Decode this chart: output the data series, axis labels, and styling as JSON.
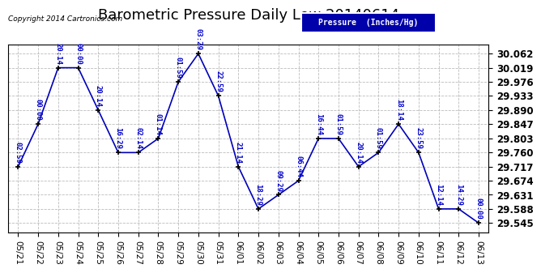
{
  "title": "Barometric Pressure Daily Low 20140614",
  "copyright": "Copyright 2014 Cartronics.com",
  "legend_label": "Pressure  (Inches/Hg)",
  "x_labels": [
    "05/21",
    "05/22",
    "05/23",
    "05/24",
    "05/25",
    "05/26",
    "05/27",
    "05/28",
    "05/29",
    "05/30",
    "05/31",
    "06/01",
    "06/02",
    "06/03",
    "06/04",
    "06/05",
    "06/06",
    "06/07",
    "06/08",
    "06/09",
    "06/10",
    "06/11",
    "06/12",
    "06/13"
  ],
  "y_values": [
    29.717,
    29.847,
    30.019,
    30.019,
    29.89,
    29.76,
    29.76,
    29.803,
    29.976,
    30.062,
    29.933,
    29.717,
    29.588,
    29.631,
    29.674,
    29.803,
    29.803,
    29.717,
    29.76,
    29.847,
    29.76,
    29.588,
    29.588,
    29.545
  ],
  "point_labels": [
    "02:59",
    "00:00",
    "20:14",
    "00:00",
    "20:14",
    "16:29",
    "02:14",
    "01:14",
    "01:59",
    "03:29",
    "22:59",
    "21:14",
    "18:29",
    "09:29",
    "06:44",
    "16:44",
    "01:59",
    "20:14",
    "01:59",
    "18:14",
    "23:59",
    "12:14",
    "14:29",
    "00:00"
  ],
  "yticks": [
    29.545,
    29.588,
    29.631,
    29.674,
    29.717,
    29.76,
    29.803,
    29.847,
    29.89,
    29.933,
    29.976,
    30.019,
    30.062
  ],
  "ylim": [
    29.515,
    30.09
  ],
  "xlim": [
    -0.5,
    23.5
  ],
  "line_color": "#0000bb",
  "marker_color": "#000000",
  "label_color": "#0000cc",
  "bg_color": "#ffffff",
  "grid_color": "#bbbbbb",
  "title_fontsize": 13,
  "label_fontsize": 6.5,
  "ytick_fontsize": 8.5,
  "xtick_fontsize": 7.5
}
